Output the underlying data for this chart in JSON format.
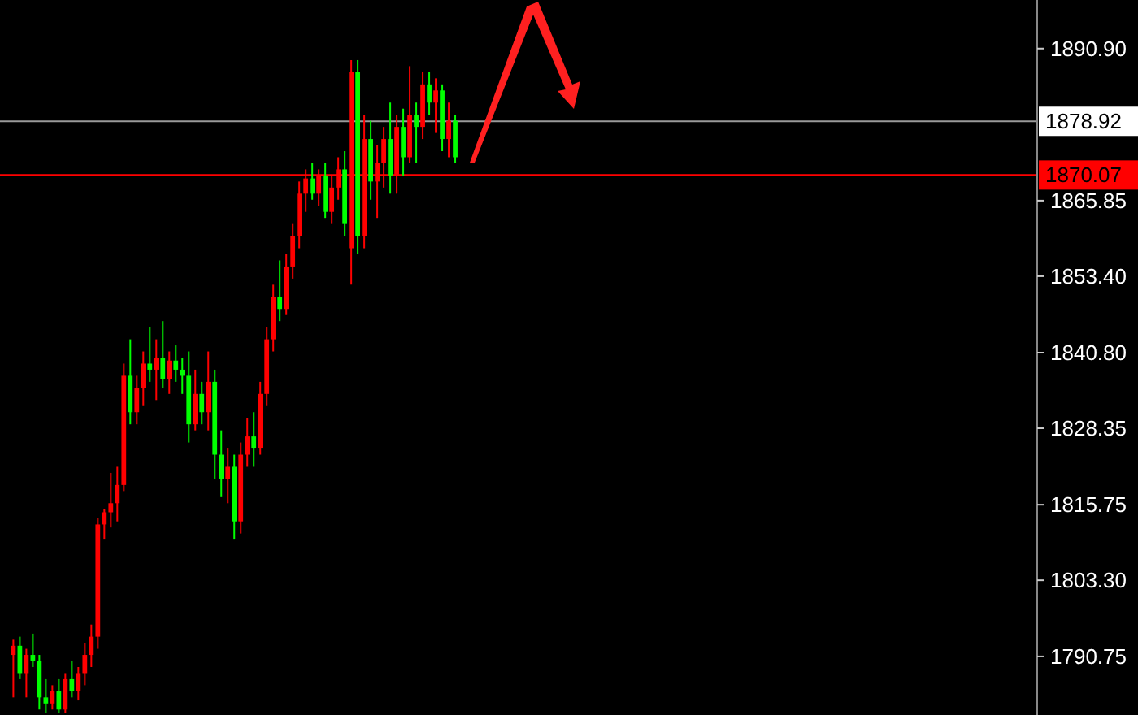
{
  "chart_data": {
    "type": "candlestick",
    "categories": [
      null,
      null,
      null,
      null,
      null,
      null,
      null,
      null,
      null,
      null,
      null,
      null,
      null,
      null,
      null,
      null,
      null,
      null,
      null,
      null,
      null,
      null,
      null,
      null,
      null,
      null,
      null,
      null,
      null,
      null,
      null,
      null,
      null,
      null,
      null,
      null,
      null,
      null,
      null,
      null,
      null,
      null,
      null,
      null,
      null,
      null,
      null,
      null,
      null,
      null,
      null,
      null,
      null,
      null,
      null,
      null,
      null,
      null,
      null,
      null,
      null,
      null,
      null,
      null,
      null,
      null,
      null,
      null,
      null,
      null,
      null,
      null,
      null,
      null,
      null,
      null,
      null,
      null,
      null,
      null,
      null,
      null,
      null,
      null,
      null,
      null,
      null,
      null,
      null,
      null,
      null,
      null,
      null,
      null,
      null,
      null,
      null,
      null,
      null,
      null,
      null,
      null,
      null,
      null,
      null,
      null,
      null,
      null,
      null,
      null,
      null,
      null,
      null,
      null,
      null,
      null,
      null,
      null,
      null,
      null,
      null,
      null,
      null,
      null,
      null,
      null,
      null,
      null,
      null,
      null,
      null,
      null,
      null,
      null,
      null,
      null,
      null,
      null,
      null,
      null,
      null,
      null,
      null,
      null,
      null,
      null,
      null,
      null,
      null,
      null,
      null,
      null,
      null,
      null,
      null,
      null,
      null,
      null
    ],
    "ohlc": [
      [
        1791,
        1793.5,
        1784,
        1792.5
      ],
      [
        1792.5,
        1794,
        1787,
        1788
      ],
      [
        1788,
        1792,
        1784,
        1791
      ],
      [
        1791,
        1794.5,
        1789,
        1790
      ],
      [
        1790,
        1791,
        1782,
        1784
      ],
      [
        1784,
        1787,
        1781.5,
        1783
      ],
      [
        1783,
        1786,
        1782,
        1785
      ],
      [
        1785,
        1787,
        1781.5,
        1782
      ],
      [
        1782,
        1788,
        1781.5,
        1787
      ],
      [
        1787,
        1790,
        1784,
        1785
      ],
      [
        1785,
        1789,
        1783.5,
        1788
      ],
      [
        1788,
        1793,
        1786,
        1791
      ],
      [
        1791,
        1796,
        1789,
        1794
      ],
      [
        1794,
        1813.5,
        1792,
        1812.5
      ],
      [
        1812.5,
        1815,
        1810,
        1814.5
      ],
      [
        1814.5,
        1821,
        1812,
        1816
      ],
      [
        1816,
        1822,
        1813,
        1819
      ],
      [
        1819,
        1839,
        1818,
        1837
      ],
      [
        1837,
        1843,
        1829,
        1831
      ],
      [
        1831,
        1837,
        1829,
        1835
      ],
      [
        1835,
        1841,
        1832,
        1839
      ],
      [
        1839,
        1845,
        1836,
        1838
      ],
      [
        1838,
        1843,
        1833,
        1840
      ],
      [
        1840,
        1846,
        1835,
        1836.5
      ],
      [
        1836.5,
        1841,
        1834,
        1839.5
      ],
      [
        1839.5,
        1842,
        1836,
        1838
      ],
      [
        1838,
        1840,
        1834,
        1837
      ],
      [
        1837,
        1841,
        1826,
        1829
      ],
      [
        1829,
        1838,
        1828,
        1834
      ],
      [
        1834,
        1836,
        1829,
        1831
      ],
      [
        1831,
        1841,
        1828,
        1836
      ],
      [
        1836,
        1838,
        1820,
        1824
      ],
      [
        1824,
        1828,
        1817,
        1820
      ],
      [
        1820,
        1825,
        1816,
        1822
      ],
      [
        1822,
        1824,
        1810,
        1813
      ],
      [
        1813,
        1826,
        1811,
        1824
      ],
      [
        1824,
        1830,
        1822,
        1827
      ],
      [
        1827,
        1831,
        1822,
        1825
      ],
      [
        1825,
        1836,
        1824,
        1834
      ],
      [
        1834,
        1845,
        1832,
        1843
      ],
      [
        1843,
        1852,
        1841,
        1850
      ],
      [
        1850,
        1856,
        1846,
        1848
      ],
      [
        1848,
        1857,
        1847,
        1855
      ],
      [
        1855,
        1862,
        1853,
        1860
      ],
      [
        1860,
        1869,
        1858,
        1867
      ],
      [
        1867,
        1871,
        1864,
        1869.5
      ],
      [
        1869.5,
        1872,
        1866,
        1867
      ],
      [
        1867,
        1871,
        1865,
        1870
      ],
      [
        1870,
        1872,
        1863,
        1864
      ],
      [
        1864,
        1870,
        1862,
        1868
      ],
      [
        1868,
        1873,
        1866,
        1871
      ],
      [
        1871,
        1874,
        1860,
        1862
      ],
      [
        1858,
        1889,
        1852,
        1887
      ],
      [
        1887,
        1889,
        1857,
        1860
      ],
      [
        1860,
        1880,
        1858,
        1876
      ],
      [
        1876,
        1879,
        1866,
        1869
      ],
      [
        1869,
        1875,
        1863,
        1872
      ],
      [
        1872,
        1878,
        1868,
        1876
      ],
      [
        1876,
        1882,
        1867,
        1870
      ],
      [
        1870,
        1880,
        1867,
        1878
      ],
      [
        1878,
        1881,
        1870,
        1873
      ],
      [
        1873,
        1888,
        1872,
        1880
      ],
      [
        1880,
        1882,
        1872,
        1878
      ],
      [
        1878,
        1887,
        1876,
        1885
      ],
      [
        1885,
        1887,
        1880,
        1882
      ],
      [
        1882,
        1886,
        1877,
        1884
      ],
      [
        1884,
        1885,
        1874,
        1876
      ],
      [
        1876,
        1882,
        1873,
        1879
      ],
      [
        1879,
        1880,
        1872,
        1873
      ],
      null,
      null,
      null,
      null,
      null,
      null,
      null,
      null,
      null,
      null,
      null,
      null,
      null,
      null,
      null,
      null,
      null,
      null,
      null,
      null,
      null,
      null,
      null,
      null,
      null,
      null,
      null,
      null,
      null,
      null,
      null,
      null,
      null,
      null,
      null,
      null,
      null,
      null,
      null,
      null,
      null,
      null,
      null,
      null,
      null,
      null,
      null,
      null,
      null,
      null,
      null,
      null,
      null,
      null,
      null,
      null,
      null,
      null,
      null,
      null,
      null,
      null,
      null,
      null,
      null,
      null,
      null,
      null,
      null,
      null,
      null,
      null,
      null,
      null,
      null,
      null,
      null,
      null,
      null,
      null,
      null,
      null,
      null,
      null,
      null,
      null,
      null,
      null,
      null
    ],
    "colors": [
      "#ff0000",
      "#00ff00",
      "#ff0000",
      "#00ff00",
      "#00ff00",
      "#00ff00",
      "#ff0000",
      "#00ff00",
      "#ff0000",
      "#00ff00",
      "#ff0000",
      "#ff0000",
      "#ff0000",
      "#ff0000",
      "#ff0000",
      "#ff0000",
      "#ff0000",
      "#ff0000",
      "#00ff00",
      "#ff0000",
      "#ff0000",
      "#00ff00",
      "#ff0000",
      "#00ff00",
      "#ff0000",
      "#00ff00",
      "#00ff00",
      "#00ff00",
      "#ff0000",
      "#00ff00",
      "#ff0000",
      "#00ff00",
      "#00ff00",
      "#ff0000",
      "#00ff00",
      "#ff0000",
      "#ff0000",
      "#00ff00",
      "#ff0000",
      "#ff0000",
      "#ff0000",
      "#00ff00",
      "#ff0000",
      "#ff0000",
      "#ff0000",
      "#ff0000",
      "#00ff00",
      "#ff0000",
      "#00ff00",
      "#ff0000",
      "#ff0000",
      "#00ff00",
      "#ff0000",
      "#00ff00",
      "#ff0000",
      "#00ff00",
      "#ff0000",
      "#ff0000",
      "#00ff00",
      "#ff0000",
      "#00ff00",
      "#ff0000",
      "#00ff00",
      "#ff0000",
      "#00ff00",
      "#ff0000",
      "#00ff00",
      "#ff0000",
      "#00ff00",
      null,
      null,
      null,
      null,
      null,
      null,
      null,
      null,
      null,
      null,
      null,
      null,
      null,
      null,
      null,
      null,
      null,
      null,
      null,
      null,
      null,
      null,
      null,
      null,
      null,
      null,
      null,
      null,
      null,
      null,
      null,
      null,
      null,
      null,
      null,
      null,
      null,
      null,
      null,
      null,
      null,
      null,
      null,
      null,
      null,
      null,
      null,
      null,
      null,
      null,
      null,
      null,
      null,
      null,
      null,
      null,
      null,
      null,
      null,
      null,
      null,
      null,
      null,
      null,
      null,
      null,
      null,
      null,
      null,
      null,
      null,
      null,
      null,
      null,
      null,
      null,
      null,
      null,
      null,
      null,
      null,
      null,
      null,
      null,
      null,
      null,
      null,
      null,
      null
    ],
    "ylim": [
      1781.1,
      1898.9
    ],
    "yticks": [
      {
        "value": 1890.9,
        "label": "1890.90"
      },
      {
        "value": 1865.85,
        "label": "1865.85"
      },
      {
        "value": 1853.4,
        "label": "1853.40"
      },
      {
        "value": 1840.8,
        "label": "1840.80"
      },
      {
        "value": 1828.35,
        "label": "1828.35"
      },
      {
        "value": 1815.75,
        "label": "1815.75"
      },
      {
        "value": 1803.3,
        "label": "1803.30"
      },
      {
        "value": 1790.75,
        "label": "1790.75"
      }
    ],
    "ref_lines": [
      {
        "axis": "y",
        "value": 1878.92,
        "label": "1878.92",
        "color": "#9a9a9a"
      },
      {
        "axis": "y",
        "value": 1870.07,
        "label": "1870.07",
        "color": "#ff0000"
      }
    ],
    "grid": false
  }
}
